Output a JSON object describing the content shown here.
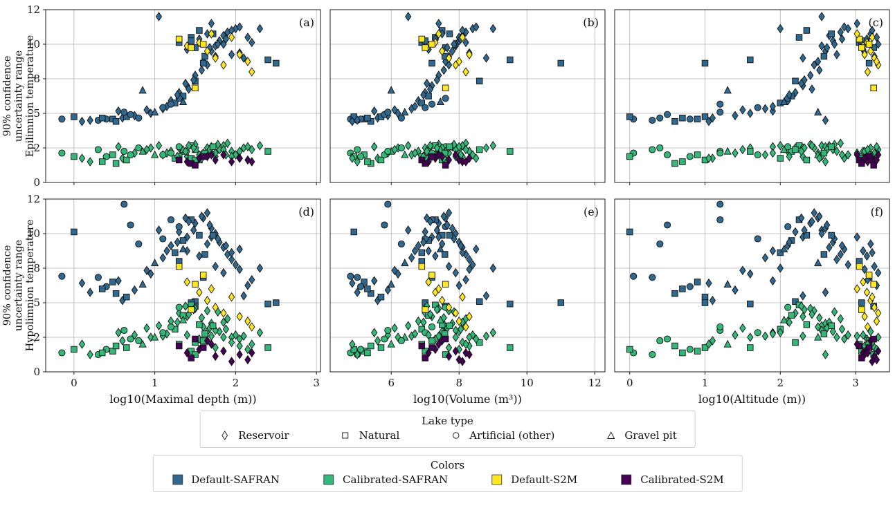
{
  "figure": {
    "background": "#ffffff",
    "panel_tags": [
      "(a)",
      "(b)",
      "(c)",
      "(d)",
      "(e)",
      "(f)"
    ]
  },
  "legends": {
    "lake_type_title": "Lake type",
    "colors_title": "Colors"
  },
  "chart_data": {
    "type": "scatter",
    "grid": true,
    "ylim": [
      0,
      12
    ],
    "yticks": [
      0,
      2,
      5,
      8,
      10,
      12
    ],
    "rows": [
      {
        "y_field": "epi",
        "ylabel_lines": [
          "90% confidence",
          "uncertainty range",
          "Epilimnion temperature"
        ]
      },
      {
        "y_field": "hypo",
        "ylabel_lines": [
          "90% confidence",
          "uncertainty range",
          "Hypolimnion temperature"
        ]
      }
    ],
    "cols": [
      {
        "x_field": "depth",
        "xlabel": "log10(Maximal depth (m))",
        "xlim": [
          -0.35,
          3.05
        ],
        "xticks": [
          0,
          1,
          2,
          3
        ]
      },
      {
        "x_field": "volume",
        "xlabel": "log10(Volume (m³))",
        "xlim": [
          4.2,
          12.3
        ],
        "xticks": [
          6,
          8,
          10,
          12
        ]
      },
      {
        "x_field": "altitude",
        "xlabel": "log10(Altitude (m))",
        "xlim": [
          -0.2,
          3.45
        ],
        "xticks": [
          0,
          1,
          2,
          3
        ]
      }
    ],
    "series": [
      {
        "key": "ds",
        "label": "Default-SAFRAN",
        "color": "#31688e"
      },
      {
        "key": "cs",
        "label": "Calibrated-SAFRAN",
        "color": "#35b779"
      },
      {
        "key": "d2",
        "label": "Default-S2M",
        "color": "#fde725"
      },
      {
        "key": "c2",
        "label": "Calibrated-S2M",
        "color": "#440154"
      }
    ],
    "lake_types": [
      {
        "key": "d",
        "label": "Reservoir",
        "marker": "diamond"
      },
      {
        "key": "s",
        "label": "Natural",
        "marker": "square"
      },
      {
        "key": "c",
        "label": "Artificial (other)",
        "marker": "circle"
      },
      {
        "key": "t",
        "label": "Gravel pit",
        "marker": "triangle"
      }
    ],
    "lakes": {
      "columns": [
        "depth",
        "volume",
        "altitude",
        "type",
        "ds_epi",
        "ds_hypo",
        "cs_epi",
        "cs_hypo",
        "d2_epi",
        "d2_hypo",
        "c2_epi",
        "c2_hypo"
      ],
      "rows": [
        [
          0.48,
          5.2,
          0.9,
          "s",
          4.5,
          6.8,
          1.6,
          1.2,
          null,
          null,
          null,
          null
        ],
        [
          0.3,
          5.0,
          0.3,
          "c",
          4.4,
          7.2,
          1.9,
          1.0,
          null,
          null,
          null,
          null
        ],
        [
          0.6,
          5.6,
          1.1,
          "d",
          4.6,
          5.2,
          1.4,
          1.8,
          null,
          null,
          null,
          null
        ],
        [
          0.75,
          5.9,
          1.4,
          "d",
          4.8,
          6.1,
          1.7,
          2.2,
          null,
          null,
          null,
          null
        ],
        [
          0.52,
          5.4,
          0.6,
          "s",
          4.3,
          5.8,
          1.1,
          1.5,
          null,
          null,
          null,
          null
        ],
        [
          0.95,
          6.2,
          1.6,
          "d",
          5.0,
          7.5,
          2.0,
          2.0,
          null,
          null,
          null,
          null
        ],
        [
          0.4,
          5.1,
          0.8,
          "c",
          4.5,
          6.4,
          1.5,
          1.3,
          null,
          null,
          null,
          null
        ],
        [
          0.85,
          6.0,
          1.3,
          "t",
          7.0,
          6.6,
          1.8,
          1.6,
          null,
          null,
          null,
          null
        ],
        [
          -0.15,
          4.8,
          0.05,
          "c",
          4.5,
          7.3,
          1.7,
          1.1,
          null,
          null,
          null,
          null
        ],
        [
          0.65,
          5.7,
          1.0,
          "s",
          4.7,
          5.5,
          1.3,
          1.4,
          null,
          null,
          null,
          null
        ],
        [
          0.55,
          5.5,
          1.9,
          "d",
          5.2,
          6.9,
          2.1,
          2.4,
          null,
          null,
          null,
          null
        ],
        [
          0.7,
          5.8,
          0.5,
          "c",
          4.9,
          10.5,
          1.6,
          1.9,
          null,
          null,
          null,
          null
        ],
        [
          0.62,
          5.9,
          1.2,
          "c",
          5.1,
          11.7,
          1.8,
          2.6,
          null,
          null,
          null,
          null
        ],
        [
          0.35,
          5.3,
          0.7,
          "s",
          4.6,
          6.2,
          1.2,
          1.1,
          null,
          null,
          null,
          null
        ],
        [
          0.9,
          6.1,
          1.5,
          "d",
          5.3,
          7.8,
          1.9,
          2.8,
          null,
          null,
          null,
          null
        ],
        [
          1.05,
          6.5,
          2.55,
          "d",
          11.6,
          10.2,
          2.2,
          3.0,
          null,
          null,
          null,
          null
        ],
        [
          1.1,
          6.6,
          1.8,
          "d",
          5.4,
          8.6,
          1.6,
          2.1,
          null,
          null,
          null,
          null
        ],
        [
          1.2,
          6.8,
          2.1,
          "d",
          6.1,
          9.3,
          1.8,
          3.4,
          null,
          null,
          null,
          null
        ],
        [
          1.3,
          7.0,
          2.2,
          "d",
          6.8,
          10.1,
          2.0,
          4.1,
          null,
          null,
          null,
          null
        ],
        [
          1.4,
          7.2,
          2.3,
          "d",
          7.4,
          9.8,
          1.5,
          3.8,
          null,
          null,
          null,
          null
        ],
        [
          1.5,
          7.4,
          2.4,
          "d",
          8.2,
          10.6,
          2.3,
          4.5,
          null,
          null,
          null,
          null
        ],
        [
          1.6,
          7.6,
          2.5,
          "d",
          9.0,
          10.9,
          1.7,
          2.9,
          null,
          null,
          null,
          null
        ],
        [
          1.7,
          7.8,
          2.6,
          "d",
          9.6,
          10.3,
          2.1,
          3.2,
          null,
          null,
          null,
          null
        ],
        [
          1.8,
          8.0,
          2.7,
          "d",
          10.2,
          9.5,
          1.9,
          2.5,
          null,
          null,
          null,
          null
        ],
        [
          1.9,
          8.2,
          2.8,
          "d",
          10.7,
          8.8,
          2.4,
          3.6,
          null,
          null,
          null,
          null
        ],
        [
          2.0,
          8.4,
          2.9,
          "d",
          10.9,
          8.2,
          1.6,
          2.2,
          null,
          null,
          null,
          null
        ],
        [
          1.25,
          6.9,
          2.0,
          "s",
          5.9,
          8.9,
          1.4,
          2.7,
          null,
          null,
          null,
          null
        ],
        [
          1.35,
          7.1,
          2.15,
          "s",
          6.5,
          9.6,
          1.8,
          3.9,
          null,
          null,
          null,
          null
        ],
        [
          1.45,
          7.3,
          2.25,
          "s",
          10.4,
          10.8,
          2.2,
          4.8,
          null,
          null,
          null,
          null
        ],
        [
          1.55,
          7.5,
          2.35,
          "s",
          10.8,
          9.9,
          1.3,
          3.1,
          null,
          null,
          null,
          null
        ],
        [
          1.65,
          7.7,
          2.45,
          "d",
          8.8,
          11.2,
          2.0,
          4.3,
          null,
          null,
          null,
          null
        ],
        [
          1.15,
          6.7,
          1.9,
          "d",
          5.6,
          9.0,
          1.7,
          2.3,
          null,
          null,
          null,
          null
        ],
        [
          1.75,
          7.9,
          2.55,
          "d",
          9.9,
          10.0,
          1.5,
          2.6,
          null,
          null,
          null,
          null
        ],
        [
          1.85,
          8.1,
          2.65,
          "d",
          10.5,
          9.2,
          2.2,
          3.3,
          null,
          null,
          null,
          null
        ],
        [
          1.95,
          8.3,
          2.75,
          "d",
          9.4,
          8.5,
          1.8,
          2.0,
          null,
          null,
          null,
          null
        ],
        [
          1.3,
          7.6,
          2.1,
          "c",
          6.3,
          10.4,
          2.1,
          4.6,
          null,
          null,
          null,
          null
        ],
        [
          1.1,
          7.0,
          1.7,
          "c",
          5.5,
          9.7,
          1.6,
          2.4,
          null,
          null,
          null,
          null
        ],
        [
          1.5,
          8.6,
          2.2,
          "s",
          7.8,
          5.1,
          1.9,
          1.7,
          null,
          null,
          null,
          null
        ],
        [
          2.1,
          8.8,
          2.3,
          "d",
          9.2,
          5.6,
          2.0,
          2.1,
          null,
          null,
          null,
          null
        ],
        [
          2.05,
          8.5,
          2.85,
          "d",
          11.0,
          9.1,
          1.4,
          1.9,
          null,
          null,
          null,
          null
        ],
        [
          1.3,
          6.9,
          3.05,
          "s",
          10.1,
          8.4,
          1.5,
          1.6,
          10.3,
          8.1,
          1.3,
          1.5
        ],
        [
          1.4,
          7.1,
          3.1,
          "d",
          9.7,
          9.0,
          1.8,
          2.2,
          9.9,
          6.8,
          1.2,
          1.1
        ],
        [
          1.55,
          7.3,
          3.15,
          "d",
          10.3,
          8.7,
          1.6,
          1.9,
          10.1,
          5.9,
          1.4,
          1.3
        ],
        [
          1.65,
          7.5,
          3.2,
          "d",
          10.6,
          9.4,
          2.0,
          2.5,
          9.6,
          5.2,
          1.5,
          1.8
        ],
        [
          1.75,
          7.7,
          3.25,
          "d",
          9.3,
          8.1,
          1.7,
          1.4,
          9.2,
          4.6,
          1.3,
          0.9
        ],
        [
          1.85,
          7.9,
          3.3,
          "d",
          10.0,
          7.6,
          1.9,
          2.0,
          8.8,
          4.1,
          1.6,
          1.2
        ],
        [
          1.95,
          8.1,
          3.22,
          "d",
          10.8,
          8.9,
          1.5,
          1.7,
          10.4,
          5.5,
          1.2,
          0.6
        ],
        [
          2.05,
          8.3,
          3.12,
          "d",
          9.5,
          7.9,
          1.8,
          1.5,
          9.4,
          3.8,
          1.4,
          1.0
        ],
        [
          1.45,
          7.0,
          3.08,
          "s",
          10.2,
          5.0,
          1.4,
          1.2,
          9.8,
          4.4,
          1.1,
          0.8
        ],
        [
          1.6,
          7.2,
          3.18,
          "s",
          8.9,
          7.2,
          1.6,
          1.8,
          10.0,
          7.4,
          1.5,
          1.4
        ],
        [
          2.15,
          8.0,
          3.28,
          "d",
          10.4,
          6.5,
          2.1,
          1.3,
          9.0,
          3.4,
          1.3,
          0.7
        ],
        [
          1.7,
          7.4,
          3.02,
          "d",
          11.2,
          9.8,
          1.7,
          2.1,
          10.6,
          6.2,
          1.6,
          1.6
        ],
        [
          1.5,
          7.6,
          3.24,
          "s",
          9.8,
          4.7,
          1.3,
          1.0,
          7.2,
          6.6,
          1.0,
          1.9
        ],
        [
          2.2,
          8.2,
          3.16,
          "d",
          10.1,
          7.0,
          1.9,
          1.6,
          8.4,
          2.9,
          1.2,
          1.1
        ],
        [
          2.5,
          11.0,
          1.0,
          "s",
          8.9,
          5.0,
          null,
          null,
          null,
          null,
          null,
          null
        ],
        [
          0.0,
          4.9,
          0.0,
          "s",
          4.7,
          10.1,
          1.5,
          1.3,
          null,
          null,
          null,
          null
        ],
        [
          0.2,
          5.0,
          2.6,
          "d",
          4.4,
          5.9,
          1.2,
          1.0,
          null,
          null,
          null,
          null
        ],
        [
          0.1,
          4.85,
          1.05,
          "d",
          4.3,
          6.7,
          1.4,
          1.6,
          null,
          null,
          null,
          null
        ],
        [
          2.3,
          9.0,
          2.0,
          "d",
          10.9,
          8.0,
          2.2,
          2.4,
          null,
          null,
          null,
          null
        ],
        [
          2.4,
          9.5,
          1.6,
          "s",
          9.1,
          4.9,
          1.8,
          1.4,
          null,
          null,
          null,
          null
        ],
        [
          1.0,
          6.4,
          2.5,
          "t",
          5.1,
          8.3,
          1.6,
          2.0,
          null,
          null,
          null,
          null
        ],
        [
          0.8,
          6.3,
          0.4,
          "c",
          4.6,
          9.4,
          2.0,
          1.8,
          null,
          null,
          null,
          null
        ],
        [
          1.2,
          7.2,
          1.2,
          "c",
          5.8,
          10.8,
          1.7,
          2.9,
          null,
          null,
          null,
          null
        ],
        [
          1.35,
          7.45,
          2.05,
          "t",
          6.0,
          9.1,
          1.9,
          3.5,
          null,
          null,
          null,
          null
        ],
        [
          1.42,
          7.15,
          2.42,
          "d",
          7.1,
          10.7,
          2.2,
          4.0,
          null,
          null,
          null,
          null
        ],
        [
          1.58,
          7.55,
          2.52,
          "d",
          8.5,
          11.0,
          1.4,
          3.7,
          null,
          null,
          null,
          null
        ],
        [
          1.68,
          7.65,
          2.62,
          "d",
          9.8,
          10.5,
          1.9,
          2.8,
          null,
          null,
          null,
          null
        ],
        [
          1.78,
          7.85,
          2.72,
          "d",
          10.0,
          9.7,
          2.3,
          4.2,
          null,
          null,
          null,
          null
        ],
        [
          1.88,
          8.05,
          2.82,
          "d",
          10.3,
          9.3,
          1.6,
          2.7,
          null,
          null,
          null,
          null
        ],
        [
          1.48,
          7.35,
          2.32,
          "d",
          7.9,
          10.2,
          2.0,
          4.4,
          null,
          null,
          null,
          null
        ],
        [
          1.62,
          7.58,
          2.58,
          "s",
          9.3,
          8.8,
          1.7,
          2.3,
          null,
          null,
          null,
          null
        ],
        [
          1.72,
          7.72,
          2.68,
          "s",
          10.6,
          9.9,
          2.1,
          3.0,
          null,
          null,
          null,
          null
        ],
        [
          1.28,
          6.95,
          2.12,
          "d",
          6.6,
          9.5,
          1.5,
          3.3,
          null,
          null,
          null,
          null
        ],
        [
          1.38,
          7.05,
          2.28,
          "d",
          7.6,
          10.9,
          1.8,
          4.7,
          null,
          null,
          null,
          null
        ]
      ]
    }
  }
}
